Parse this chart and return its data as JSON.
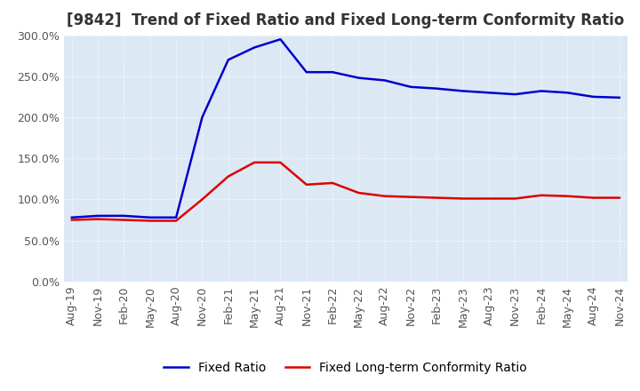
{
  "title": "[9842]  Trend of Fixed Ratio and Fixed Long-term Conformity Ratio",
  "x_labels": [
    "Aug-19",
    "Nov-19",
    "Feb-20",
    "May-20",
    "Aug-20",
    "Nov-20",
    "Feb-21",
    "May-21",
    "Aug-21",
    "Nov-21",
    "Feb-22",
    "May-22",
    "Aug-22",
    "Nov-22",
    "Feb-23",
    "May-23",
    "Aug-23",
    "Nov-23",
    "Feb-24",
    "May-24",
    "Aug-24",
    "Nov-24"
  ],
  "fixed_ratio": [
    78,
    80,
    80,
    78,
    78,
    200,
    270,
    285,
    295,
    255,
    255,
    248,
    245,
    237,
    235,
    232,
    230,
    228,
    232,
    230,
    225,
    224
  ],
  "fixed_lt_ratio": [
    75,
    76,
    75,
    74,
    74,
    100,
    128,
    145,
    145,
    118,
    120,
    108,
    104,
    103,
    102,
    101,
    101,
    101,
    105,
    104,
    102,
    102
  ],
  "fixed_ratio_color": "#0000CC",
  "fixed_lt_ratio_color": "#DD0000",
  "ylim": [
    0,
    300
  ],
  "yticks": [
    0,
    50,
    100,
    150,
    200,
    250,
    300
  ],
  "plot_bg_color": "#dce9f5",
  "fig_bg_color": "#FFFFFF",
  "grid_color": "#FFFFFF",
  "title_fontsize": 12,
  "legend_fontsize": 10,
  "tick_fontsize": 9,
  "linewidth": 1.8
}
